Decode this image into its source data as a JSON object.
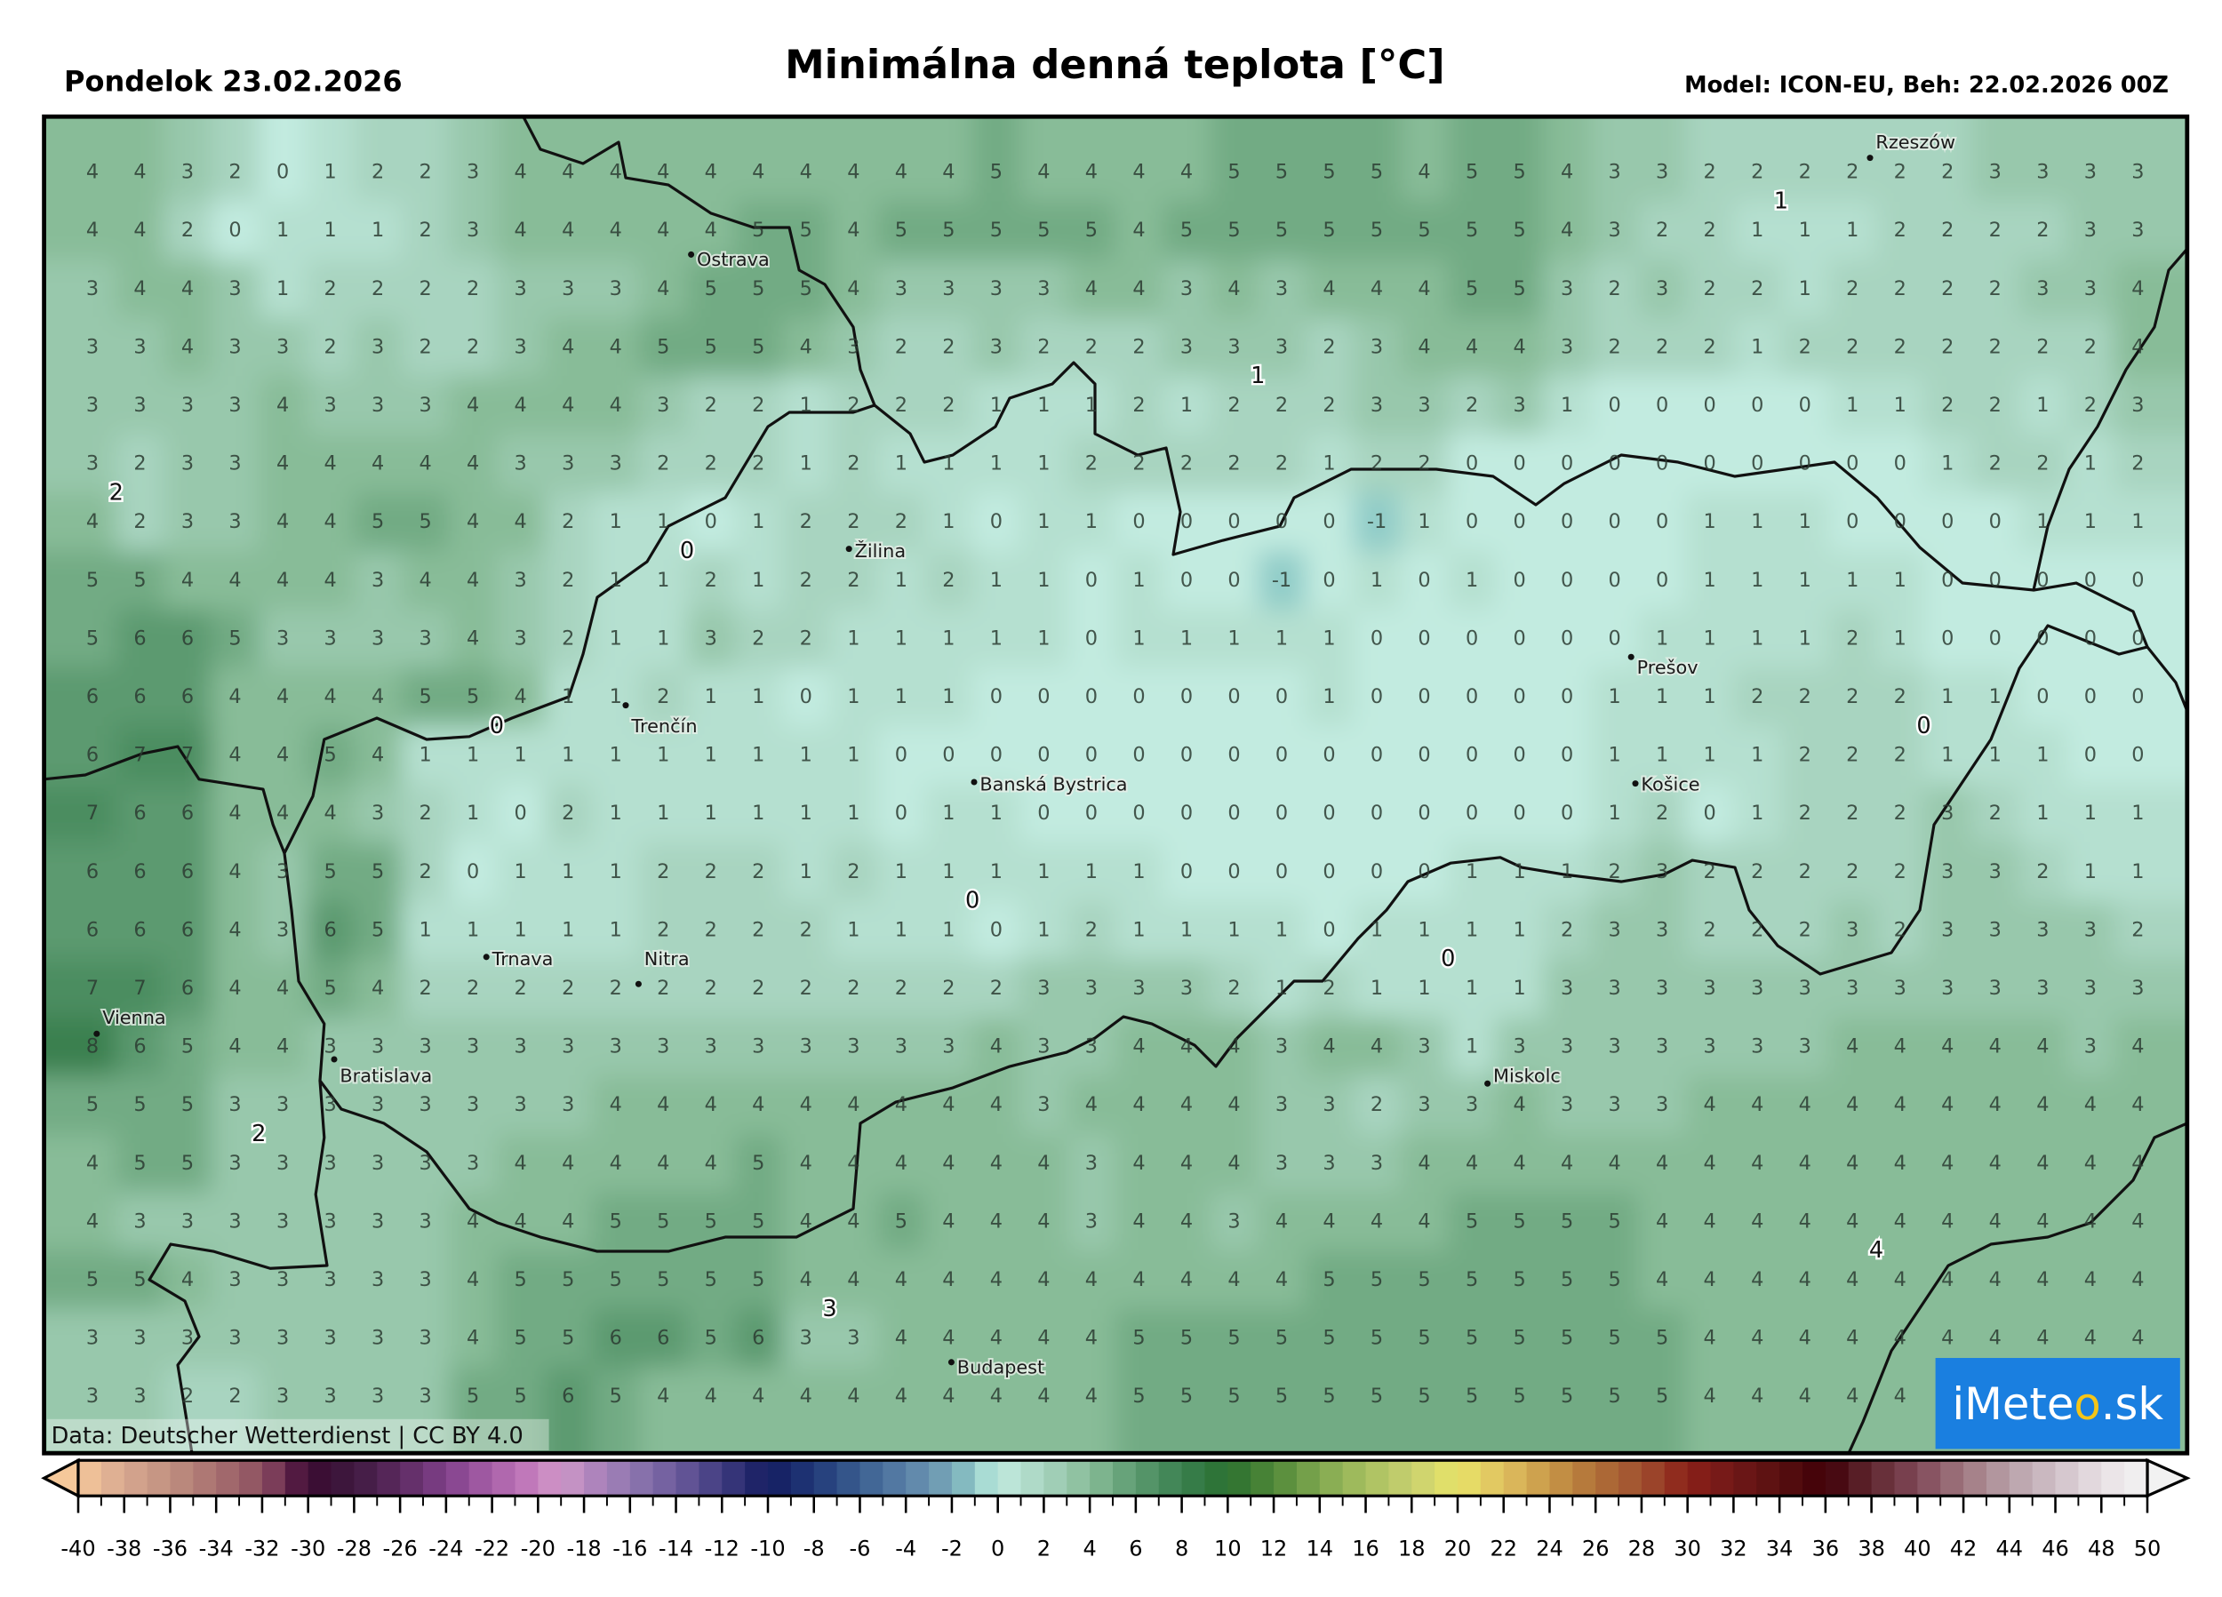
{
  "header": {
    "date": "Pondelok 23.02.2026",
    "title": "Minimálna denná teplota [°C]",
    "model": "Model: ICON-EU, Beh: 22.02.2026 00Z"
  },
  "map": {
    "credit": "Data: Deutscher Wetterdienst | CC BY 4.0",
    "logo_text": "iMeteo.sk",
    "colors": {
      "logo_bg": "#1a7fe0",
      "logo_sun": "#f5c518",
      "border": "#111111"
    },
    "cities": [
      "Rzeszów",
      "Ostrava",
      "Žilina",
      "Prešov",
      "Trenčín",
      "Banská Bystrica",
      "Košice",
      "Trnava",
      "Nitra",
      "Vienna",
      "Bratislava",
      "Miskolc",
      "Budapest"
    ],
    "contour_labels": [
      "1",
      "1",
      "2",
      "0",
      "0",
      "0",
      "0",
      "0",
      "2",
      "3",
      "4"
    ],
    "grid_values": [
      [
        4,
        4,
        3,
        2,
        0,
        1,
        2,
        2,
        3,
        4,
        4,
        4,
        4,
        4,
        4,
        4,
        4,
        4,
        4,
        5,
        4,
        4,
        4,
        4,
        5,
        5,
        5,
        5,
        4,
        5,
        5,
        4,
        3,
        3,
        2,
        2,
        2,
        2,
        2,
        2,
        3,
        3,
        3,
        3
      ],
      [
        4,
        4,
        2,
        0,
        1,
        1,
        1,
        2,
        3,
        4,
        4,
        4,
        4,
        4,
        5,
        5,
        4,
        5,
        5,
        5,
        5,
        5,
        4,
        5,
        5,
        5,
        5,
        5,
        5,
        5,
        5,
        4,
        3,
        2,
        2,
        1,
        1,
        1,
        2,
        2,
        2,
        2,
        3,
        3
      ],
      [
        3,
        4,
        4,
        3,
        1,
        2,
        2,
        2,
        2,
        3,
        3,
        3,
        4,
        5,
        5,
        5,
        4,
        3,
        3,
        3,
        3,
        4,
        4,
        3,
        4,
        3,
        4,
        4,
        4,
        5,
        5,
        3,
        2,
        3,
        2,
        2,
        1,
        2,
        2,
        2,
        2,
        3,
        3,
        4
      ],
      [
        3,
        3,
        4,
        3,
        3,
        2,
        3,
        2,
        2,
        3,
        4,
        4,
        5,
        5,
        5,
        4,
        3,
        2,
        2,
        3,
        2,
        2,
        2,
        3,
        3,
        3,
        2,
        3,
        4,
        4,
        4,
        3,
        2,
        2,
        2,
        1,
        2,
        2,
        2,
        2,
        2,
        2,
        2,
        4
      ],
      [
        3,
        3,
        3,
        3,
        4,
        3,
        3,
        3,
        4,
        4,
        4,
        4,
        3,
        2,
        2,
        1,
        2,
        2,
        2,
        1,
        1,
        1,
        2,
        1,
        2,
        2,
        2,
        3,
        3,
        2,
        3,
        1,
        0,
        0,
        0,
        0,
        0,
        1,
        1,
        2,
        2,
        1,
        2,
        3
      ],
      [
        3,
        2,
        3,
        3,
        4,
        4,
        4,
        4,
        4,
        3,
        3,
        3,
        2,
        2,
        2,
        1,
        2,
        1,
        1,
        1,
        1,
        2,
        2,
        2,
        2,
        2,
        1,
        2,
        2,
        0,
        0,
        0,
        0,
        0,
        0,
        0,
        0,
        0,
        0,
        1,
        2,
        2,
        1,
        2
      ],
      [
        4,
        2,
        3,
        3,
        4,
        4,
        5,
        5,
        4,
        4,
        2,
        1,
        1,
        0,
        1,
        2,
        2,
        2,
        1,
        0,
        1,
        1,
        0,
        0,
        0,
        0,
        0,
        -1,
        1,
        0,
        0,
        0,
        0,
        0,
        1,
        1,
        1,
        0,
        0,
        0,
        0,
        1,
        1,
        1
      ],
      [
        5,
        5,
        4,
        4,
        4,
        4,
        3,
        4,
        4,
        3,
        2,
        1,
        1,
        2,
        1,
        2,
        2,
        1,
        2,
        1,
        1,
        0,
        1,
        0,
        0,
        -1,
        0,
        1,
        0,
        1,
        0,
        0,
        0,
        0,
        1,
        1,
        1,
        1,
        1,
        0,
        0,
        0,
        0,
        0
      ],
      [
        5,
        6,
        6,
        5,
        3,
        3,
        3,
        3,
        4,
        3,
        2,
        1,
        1,
        3,
        2,
        2,
        1,
        1,
        1,
        1,
        1,
        0,
        1,
        1,
        1,
        1,
        1,
        0,
        0,
        0,
        0,
        0,
        0,
        1,
        1,
        1,
        1,
        2,
        1,
        0,
        0,
        0,
        0,
        0
      ],
      [
        6,
        6,
        6,
        4,
        4,
        4,
        4,
        5,
        5,
        4,
        1,
        1,
        2,
        1,
        1,
        0,
        1,
        1,
        1,
        0,
        0,
        0,
        0,
        0,
        0,
        0,
        1,
        0,
        0,
        0,
        0,
        0,
        1,
        1,
        1,
        2,
        2,
        2,
        2,
        1,
        1,
        0,
        0,
        0
      ],
      [
        6,
        7,
        7,
        4,
        4,
        5,
        4,
        1,
        1,
        1,
        1,
        1,
        1,
        1,
        1,
        1,
        1,
        0,
        0,
        0,
        0,
        0,
        0,
        0,
        0,
        0,
        0,
        0,
        0,
        0,
        0,
        0,
        1,
        1,
        1,
        1,
        2,
        2,
        2,
        1,
        1,
        1,
        0,
        0
      ],
      [
        7,
        6,
        6,
        4,
        4,
        4,
        3,
        2,
        1,
        0,
        2,
        1,
        1,
        1,
        1,
        1,
        1,
        0,
        1,
        1,
        0,
        0,
        0,
        0,
        0,
        0,
        0,
        0,
        0,
        0,
        0,
        0,
        1,
        2,
        0,
        1,
        2,
        2,
        2,
        3,
        2,
        1,
        1,
        1
      ],
      [
        6,
        6,
        6,
        4,
        3,
        5,
        5,
        2,
        0,
        1,
        1,
        1,
        2,
        2,
        2,
        1,
        2,
        1,
        1,
        1,
        1,
        1,
        1,
        0,
        0,
        0,
        0,
        0,
        0,
        1,
        1,
        1,
        2,
        3,
        2,
        2,
        2,
        2,
        2,
        3,
        3,
        2,
        1,
        1
      ],
      [
        6,
        6,
        6,
        4,
        3,
        6,
        5,
        1,
        1,
        1,
        1,
        1,
        2,
        2,
        2,
        2,
        1,
        1,
        1,
        0,
        1,
        2,
        1,
        1,
        1,
        1,
        0,
        1,
        1,
        1,
        1,
        2,
        3,
        3,
        2,
        2,
        2,
        3,
        2,
        3,
        3,
        3,
        3,
        2
      ],
      [
        7,
        7,
        6,
        4,
        4,
        5,
        4,
        2,
        2,
        2,
        2,
        2,
        2,
        2,
        2,
        2,
        2,
        2,
        2,
        2,
        3,
        3,
        3,
        3,
        2,
        1,
        2,
        1,
        1,
        1,
        1,
        3,
        3,
        3,
        3,
        3,
        3,
        3,
        3,
        3,
        3,
        3,
        3,
        3
      ],
      [
        8,
        6,
        5,
        4,
        4,
        3,
        3,
        3,
        3,
        3,
        3,
        3,
        3,
        3,
        3,
        3,
        3,
        3,
        3,
        4,
        3,
        3,
        4,
        4,
        4,
        3,
        4,
        4,
        3,
        1,
        3,
        3,
        3,
        3,
        3,
        3,
        3,
        4,
        4,
        4,
        4,
        4,
        3,
        4
      ],
      [
        5,
        5,
        5,
        3,
        3,
        3,
        3,
        3,
        3,
        3,
        3,
        4,
        4,
        4,
        4,
        4,
        4,
        4,
        4,
        4,
        3,
        4,
        4,
        4,
        4,
        3,
        3,
        2,
        3,
        3,
        4,
        3,
        3,
        3,
        4,
        4,
        4,
        4,
        4,
        4,
        4,
        4,
        4,
        4
      ],
      [
        4,
        5,
        5,
        3,
        3,
        3,
        3,
        3,
        3,
        4,
        4,
        4,
        4,
        4,
        5,
        4,
        4,
        4,
        4,
        4,
        4,
        3,
        4,
        4,
        4,
        3,
        3,
        3,
        4,
        4,
        4,
        4,
        4,
        4,
        4,
        4,
        4,
        4,
        4,
        4,
        4,
        4,
        4,
        4
      ],
      [
        4,
        3,
        3,
        3,
        3,
        3,
        3,
        3,
        4,
        4,
        4,
        5,
        5,
        5,
        5,
        4,
        4,
        5,
        4,
        4,
        4,
        3,
        4,
        4,
        3,
        4,
        4,
        4,
        4,
        5,
        5,
        5,
        5,
        4,
        4,
        4,
        4,
        4,
        4,
        4,
        4,
        4,
        4,
        4
      ],
      [
        5,
        5,
        4,
        3,
        3,
        3,
        3,
        3,
        4,
        5,
        5,
        5,
        5,
        5,
        5,
        4,
        4,
        4,
        4,
        4,
        4,
        4,
        4,
        4,
        4,
        4,
        5,
        5,
        5,
        5,
        5,
        5,
        5,
        4,
        4,
        4,
        4,
        4,
        4,
        4,
        4,
        4,
        4,
        4
      ],
      [
        3,
        3,
        3,
        3,
        3,
        3,
        3,
        3,
        4,
        5,
        5,
        6,
        6,
        5,
        6,
        3,
        3,
        4,
        4,
        4,
        4,
        4,
        5,
        5,
        5,
        5,
        5,
        5,
        5,
        5,
        5,
        5,
        5,
        5,
        4,
        4,
        4,
        4,
        4,
        4,
        4,
        4,
        4,
        4
      ],
      [
        3,
        3,
        2,
        2,
        3,
        3,
        3,
        3,
        5,
        5,
        6,
        5,
        4,
        4,
        4,
        4,
        4,
        4,
        4,
        4,
        4,
        4,
        5,
        5,
        5,
        5,
        5,
        5,
        5,
        5,
        5,
        5,
        5,
        5,
        4,
        4,
        4,
        4,
        4,
        null,
        null,
        null,
        null,
        null
      ]
    ]
  },
  "colorbar": {
    "min": -40,
    "max": 50,
    "extend": "both",
    "ticks": [
      -40,
      -38,
      -36,
      -34,
      -32,
      -30,
      -28,
      -26,
      -24,
      -22,
      -20,
      -18,
      -16,
      -14,
      -12,
      -10,
      -8,
      -6,
      -4,
      -2,
      0,
      2,
      4,
      6,
      8,
      10,
      12,
      14,
      16,
      18,
      20,
      22,
      24,
      26,
      28,
      30,
      32,
      34,
      36,
      38,
      40,
      42,
      44,
      46,
      48,
      50
    ],
    "stops": [
      [
        -40,
        "#f5c89a"
      ],
      [
        -38,
        "#d8a890"
      ],
      [
        -36,
        "#c09080"
      ],
      [
        -34,
        "#a87070"
      ],
      [
        -32,
        "#8c5060"
      ],
      [
        -31,
        "#6a2a52"
      ],
      [
        -30,
        "#3a0a30"
      ],
      [
        -28,
        "#3e1a40"
      ],
      [
        -26,
        "#5c2a60"
      ],
      [
        -24,
        "#80408a"
      ],
      [
        -22,
        "#a860a8"
      ],
      [
        -20,
        "#c880c0"
      ],
      [
        -19,
        "#d09cc8"
      ],
      [
        -18,
        "#b888c0"
      ],
      [
        -16,
        "#9078b0"
      ],
      [
        -14,
        "#6c5a9c"
      ],
      [
        -12,
        "#403c80"
      ],
      [
        -10,
        "#141c60"
      ],
      [
        -8,
        "#203878"
      ],
      [
        -6,
        "#3a5e90"
      ],
      [
        -4,
        "#5a80a8"
      ],
      [
        -2,
        "#78a8b8"
      ],
      [
        -1,
        "#90ccc8"
      ],
      [
        0,
        "#c2ebe0"
      ],
      [
        2,
        "#a8d4c0"
      ],
      [
        4,
        "#88bc98"
      ],
      [
        6,
        "#5c9a70"
      ],
      [
        8,
        "#3a8050"
      ],
      [
        10,
        "#2a7030"
      ],
      [
        12,
        "#508838"
      ],
      [
        14,
        "#80a850"
      ],
      [
        16,
        "#a8c060"
      ],
      [
        18,
        "#c8d070"
      ],
      [
        20,
        "#e8e468"
      ],
      [
        22,
        "#e0c060"
      ],
      [
        24,
        "#c89848"
      ],
      [
        26,
        "#b07038"
      ],
      [
        28,
        "#a05030"
      ],
      [
        30,
        "#8a2018"
      ],
      [
        32,
        "#701818"
      ],
      [
        34,
        "#581010"
      ],
      [
        36,
        "#400008"
      ],
      [
        38,
        "#602830"
      ],
      [
        40,
        "#804858"
      ],
      [
        42,
        "#a07880"
      ],
      [
        44,
        "#b8a0a8"
      ],
      [
        46,
        "#d0c0c8"
      ],
      [
        48,
        "#e8e0e4"
      ],
      [
        50,
        "#f2f2f2"
      ]
    ]
  }
}
